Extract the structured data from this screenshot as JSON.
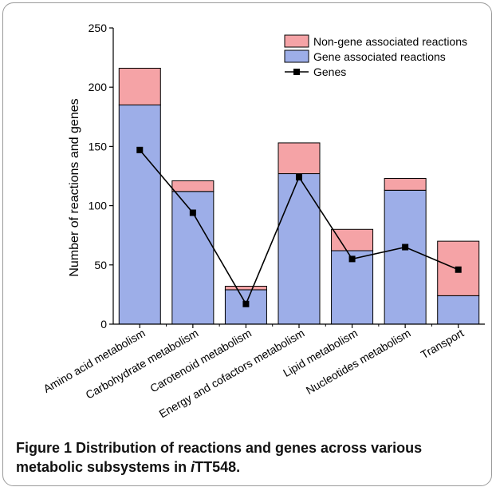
{
  "chart_data": {
    "type": "bar",
    "stacked": true,
    "categories": [
      "Amino acid metabolism",
      "Carbohydrate metabolism",
      "Carotenoid metabolism",
      "Energy and cofactors metabolism",
      "Lipid metabolism",
      "Nucleotides metabolism",
      "Transport"
    ],
    "series": [
      {
        "name": "Gene associated reactions",
        "type": "bar",
        "color": "#9daee8",
        "values": [
          185,
          112,
          29,
          127,
          62,
          113,
          24
        ]
      },
      {
        "name": "Non-gene associated reactions",
        "type": "bar",
        "color": "#f5a3a6",
        "values": [
          31,
          9,
          3,
          26,
          18,
          10,
          46
        ]
      },
      {
        "name": "Genes",
        "type": "line",
        "color": "#000000",
        "marker": "square",
        "values": [
          147,
          94,
          17,
          124,
          55,
          65,
          46
        ]
      }
    ],
    "legend_order": [
      "Non-gene associated reactions",
      "Gene associated reactions",
      "Genes"
    ],
    "legend_position": "top-right",
    "ylabel": "Number of reactions and genes",
    "ylim": [
      0,
      250
    ],
    "yticks": [
      0,
      50,
      100,
      150,
      200,
      250
    ],
    "grid": false
  },
  "caption": {
    "label": "Figure 1",
    "text_before": " Distribution of reactions and genes across various metabolic subsystems in ",
    "italic": "i",
    "text_after": "TT548."
  }
}
